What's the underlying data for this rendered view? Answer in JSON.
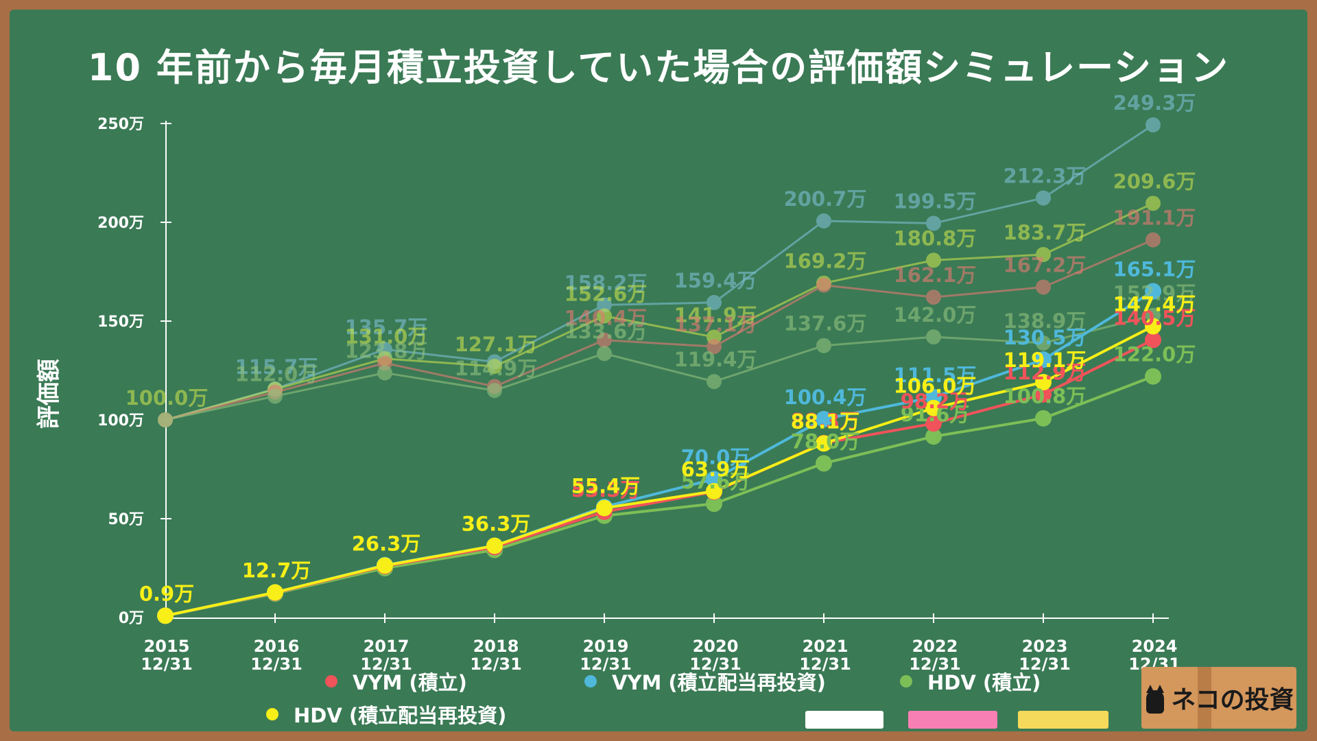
{
  "title": "10 年前から毎月積立投資していた場合の評価額シミュレーション",
  "logo_text": "ネコの投資",
  "icons": {
    "logo": "cat-icon"
  },
  "chalk_colors": [
    "#ffffff",
    "#f77fb3",
    "#f5d95a"
  ],
  "chart_data": {
    "type": "line",
    "ylabel": "評価額",
    "ylim": [
      0,
      2500000
    ],
    "yticks": [
      {
        "value": 0,
        "label": "0万"
      },
      {
        "value": 500000,
        "label": "50万"
      },
      {
        "value": 1000000,
        "label": "100万"
      },
      {
        "value": 1500000,
        "label": "150万"
      },
      {
        "value": 2000000,
        "label": "200万"
      },
      {
        "value": 2500000,
        "label": "250万"
      }
    ],
    "categories": [
      "2015\n12/31",
      "2016\n12/31",
      "2017\n12/31",
      "2018\n12/31",
      "2019\n12/31",
      "2020\n12/31",
      "2021\n12/31",
      "2022\n12/31",
      "2023\n12/31",
      "2024\n12/31"
    ],
    "series": [
      {
        "name": "",
        "color": "#7bbdd0",
        "muted": true,
        "values": [
          1000000,
          1157000,
          1357000,
          1294000,
          1582000,
          1594000,
          2007000,
          1995000,
          2123000,
          2493000
        ],
        "labels": [
          "",
          "115.7万",
          "135.7万",
          "",
          "158.2万",
          "159.4万",
          "200.7万",
          "199.5万",
          "212.3万",
          "249.3万"
        ]
      },
      {
        "name": "",
        "color": "#c2dd50",
        "muted": true,
        "values": [
          1000000,
          1155000,
          1310000,
          1271000,
          1526000,
          1419000,
          1692000,
          1808000,
          1837000,
          2096000
        ],
        "labels": [
          "100.0万",
          "",
          "131.0万",
          "127.1万",
          "152.6万",
          "141.9万",
          "169.2万",
          "180.8万",
          "183.7万",
          "209.6万"
        ]
      },
      {
        "name": "",
        "color": "#e07a72",
        "muted": true,
        "values": [
          1000000,
          1140000,
          1288000,
          1169000,
          1404000,
          1371000,
          1682000,
          1621000,
          1672000,
          1911000
        ],
        "labels": [
          "",
          "",
          "",
          "",
          "140.4万",
          "137.1万",
          "",
          "162.1万",
          "167.2万",
          "191.1万"
        ]
      },
      {
        "name": "",
        "color": "#8fc07c",
        "muted": true,
        "values": [
          1000000,
          1120000,
          1238000,
          1149000,
          1336000,
          1194000,
          1376000,
          1420000,
          1389000,
          1529000
        ],
        "labels": [
          "",
          "112.0万",
          "123.8万",
          "114.9万",
          "133.6万",
          "119.4万",
          "137.6万",
          "142.0万",
          "138.9万",
          "152.9万"
        ]
      },
      {
        "name": "HDV (積立)",
        "color": "#7dbf57",
        "muted": false,
        "values": [
          9000,
          121000,
          250000,
          342000,
          515000,
          576000,
          780000,
          916000,
          1008000,
          1220000
        ],
        "labels": [
          "",
          "",
          "",
          "",
          "",
          "57.6万",
          "78.0万",
          "91.6万",
          "100.8万",
          "122.0万"
        ]
      },
      {
        "name": "VYM (積立)",
        "color": "#f0535a",
        "muted": false,
        "values": [
          9000,
          125000,
          260000,
          356000,
          535000,
          636000,
          883000,
          982000,
          1129000,
          1405000
        ],
        "labels": [
          "",
          "",
          "",
          "",
          "53.5万",
          "",
          "88.3万",
          "98.2万",
          "112.9万",
          "140.5万"
        ]
      },
      {
        "name": "VYM (積立配当再投資)",
        "color": "#4fb8db",
        "muted": false,
        "values": [
          9000,
          127000,
          265000,
          363000,
          560000,
          700000,
          1004000,
          1115000,
          1305000,
          1651000
        ],
        "labels": [
          "",
          "",
          "",
          "",
          "",
          "70.0万",
          "100.4万",
          "111.5万",
          "130.5万",
          "165.1万"
        ]
      },
      {
        "name": "HDV (積立配当再投資)",
        "color": "#f7ef17",
        "muted": false,
        "values": [
          9000,
          127000,
          263000,
          363000,
          554000,
          639000,
          881000,
          1060000,
          1191000,
          1474000
        ],
        "labels": [
          "0.9万",
          "12.7万",
          "26.3万",
          "36.3万",
          "55.4万",
          "63.9万",
          "88.1万",
          "106.0万",
          "119.1万",
          "147.4万"
        ]
      }
    ],
    "legend": [
      "VYM (積立)",
      "VYM (積立配当再投資)",
      "HDV (積立)",
      "HDV (積立配当再投資)"
    ],
    "legend_placement": "bottom",
    "grid": false
  }
}
